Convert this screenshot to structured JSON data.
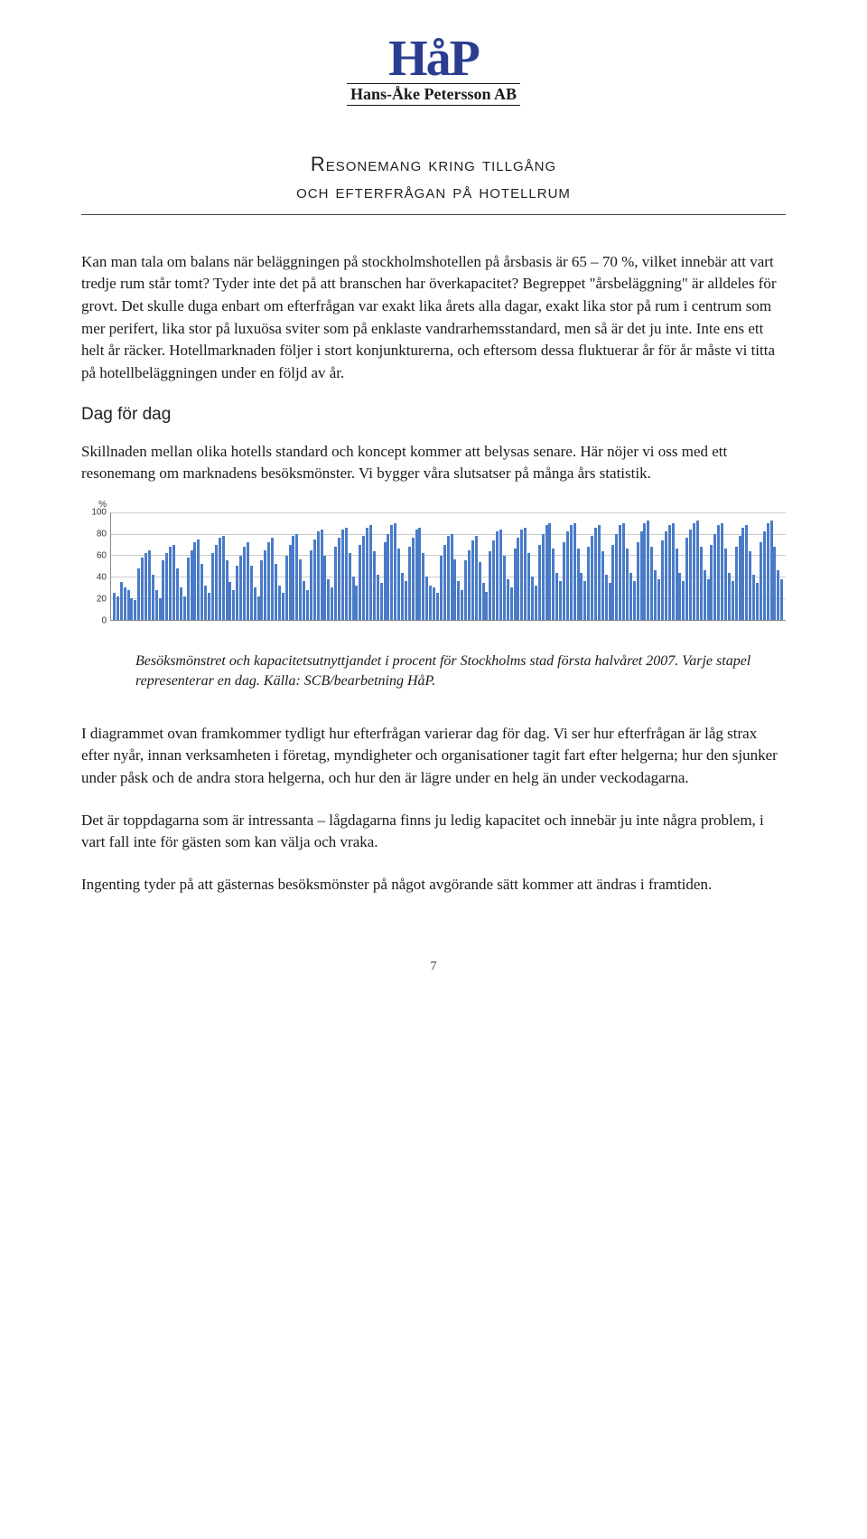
{
  "logo": {
    "main": "HåP",
    "sub": "Hans-Åke Petersson AB",
    "main_color": "#2a3d8f"
  },
  "title": {
    "line1": "Resonemang kring tillgång",
    "line2": "och efterfrågan på hotellrum"
  },
  "para1": "Kan man tala om balans när beläggningen på stockholmshotellen på årsbasis är 65 – 70 %, vilket innebär att vart tredje rum står tomt? Tyder inte det på att branschen har överkapacitet? Begreppet \"årsbeläggning\" är alldeles för grovt. Det skulle duga enbart om efterfrågan var exakt lika årets alla dagar, exakt lika stor på rum i centrum som mer perifert, lika stor på luxuösa sviter som på enklaste vandrarhemsstandard, men så är det ju inte. Inte ens ett helt år räcker. Hotellmarknaden följer i stort konjunkturerna, och eftersom dessa fluktuerar år för år måste vi titta på hotellbeläggningen under en följd av år.",
  "section1": "Dag för dag",
  "para2": "Skillnaden mellan olika hotells standard och koncept kommer att belysas senare. Här nöjer vi oss med ett resonemang om marknadens besöksmönster. Vi bygger våra slutsatser på många års statistik.",
  "chart": {
    "type": "bar",
    "y_unit": "%",
    "ylim": [
      0,
      100
    ],
    "yticks": [
      0,
      20,
      40,
      60,
      80,
      100
    ],
    "bar_color": "#4a7bc8",
    "grid_color": "#cccccc",
    "axis_color": "#888888",
    "label_fontsize": 10,
    "values": [
      25,
      22,
      35,
      30,
      28,
      20,
      18,
      48,
      58,
      62,
      65,
      42,
      28,
      20,
      55,
      62,
      68,
      70,
      48,
      30,
      22,
      58,
      65,
      72,
      75,
      52,
      32,
      25,
      62,
      70,
      76,
      78,
      55,
      35,
      28,
      50,
      60,
      68,
      72,
      50,
      30,
      22,
      55,
      65,
      72,
      76,
      52,
      32,
      25,
      60,
      70,
      78,
      80,
      56,
      36,
      28,
      65,
      75,
      82,
      84,
      60,
      38,
      30,
      68,
      76,
      84,
      86,
      62,
      40,
      32,
      70,
      78,
      86,
      88,
      64,
      42,
      34,
      72,
      80,
      88,
      90,
      66,
      44,
      36,
      68,
      76,
      84,
      86,
      62,
      40,
      32,
      30,
      25,
      60,
      70,
      78,
      80,
      56,
      36,
      28,
      55,
      65,
      74,
      78,
      54,
      34,
      26,
      64,
      74,
      82,
      84,
      60,
      38,
      30,
      66,
      76,
      84,
      86,
      62,
      40,
      32,
      70,
      80,
      88,
      90,
      66,
      44,
      36,
      72,
      82,
      88,
      90,
      66,
      44,
      36,
      68,
      78,
      86,
      88,
      64,
      42,
      34,
      70,
      80,
      88,
      90,
      66,
      44,
      36,
      72,
      82,
      90,
      92,
      68,
      46,
      38,
      74,
      82,
      88,
      90,
      66,
      44,
      36,
      76,
      84,
      90,
      92,
      68,
      46,
      38,
      70,
      80,
      88,
      90,
      66,
      44,
      36,
      68,
      78,
      86,
      88,
      64,
      42,
      34,
      72,
      82,
      90,
      92,
      68,
      46,
      38
    ]
  },
  "caption": "Besöksmönstret och kapacitetsutnyttjandet i procent för Stockholms stad första halvåret 2007. Varje stapel representerar en dag. Källa: SCB/bearbetning HåP.",
  "para3": "I diagrammet ovan framkommer tydligt hur efterfrågan varierar dag för dag. Vi ser hur efterfrågan är låg strax efter nyår, innan verksamheten i företag, myndigheter och organisationer tagit fart efter helgerna; hur den sjunker under påsk och de andra stora helgerna, och hur den är lägre under en helg än under veckodagarna.",
  "para4": "Det är toppdagarna som är intressanta – lågdagarna finns ju ledig kapacitet och innebär ju inte några problem, i vart fall inte för gästen som kan välja och vraka.",
  "para5": "Ingenting tyder på att gästernas besöksmönster på något avgörande sätt kommer att ändras i framtiden.",
  "page_number": "7"
}
